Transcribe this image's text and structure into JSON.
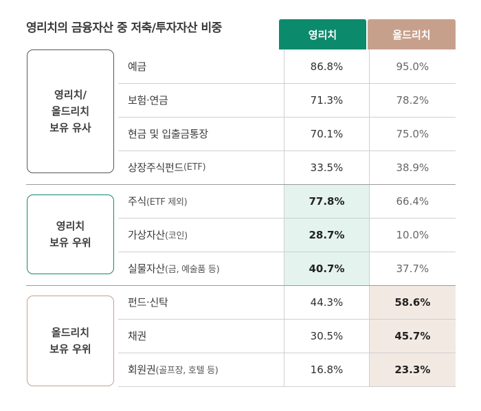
{
  "title": "영리치의 금융자산 중 저축/투자자산 비중",
  "headers": {
    "young": "영리치",
    "old": "올드리치"
  },
  "colors": {
    "young": "#0c8a6c",
    "old": "#c7a08c",
    "young_highlight": "#e4f3ee",
    "old_highlight": "#f3e9e3"
  },
  "groups": [
    {
      "label": "영리치/\n올드리치\n보유 유사",
      "border": "#555555"
    },
    {
      "label": "영리치\n보유 우위",
      "border": "#0c8a6c"
    },
    {
      "label": "올드리치\n보유 우위",
      "border": "#c7a08c"
    }
  ],
  "rows": [
    {
      "label": "예금",
      "sub": "",
      "young": "86.8%",
      "old": "95.0%",
      "highlight": ""
    },
    {
      "label": "보험·연금",
      "sub": "",
      "young": "71.3%",
      "old": "78.2%",
      "highlight": ""
    },
    {
      "label": "현금 및 입출금통장",
      "sub": "",
      "young": "70.1%",
      "old": "75.0%",
      "highlight": ""
    },
    {
      "label": "상장주식펀드",
      "sub": "(ETF)",
      "young": "33.5%",
      "old": "38.9%",
      "highlight": ""
    },
    {
      "label": "주식",
      "sub": "(ETF 제외)",
      "young": "77.8%",
      "old": "66.4%",
      "highlight": "young"
    },
    {
      "label": "가상자산",
      "sub": "(코인)",
      "young": "28.7%",
      "old": "10.0%",
      "highlight": "young"
    },
    {
      "label": "실물자산",
      "sub": "(금, 예술품 등)",
      "young": "40.7%",
      "old": "37.7%",
      "highlight": "young"
    },
    {
      "label": "펀드·신탁",
      "sub": "",
      "young": "44.3%",
      "old": "58.6%",
      "highlight": "old"
    },
    {
      "label": "채권",
      "sub": "",
      "young": "30.5%",
      "old": "45.7%",
      "highlight": "old"
    },
    {
      "label": "회원권",
      "sub": "(골프장, 호텔 등)",
      "young": "16.8%",
      "old": "23.3%",
      "highlight": "old"
    }
  ]
}
